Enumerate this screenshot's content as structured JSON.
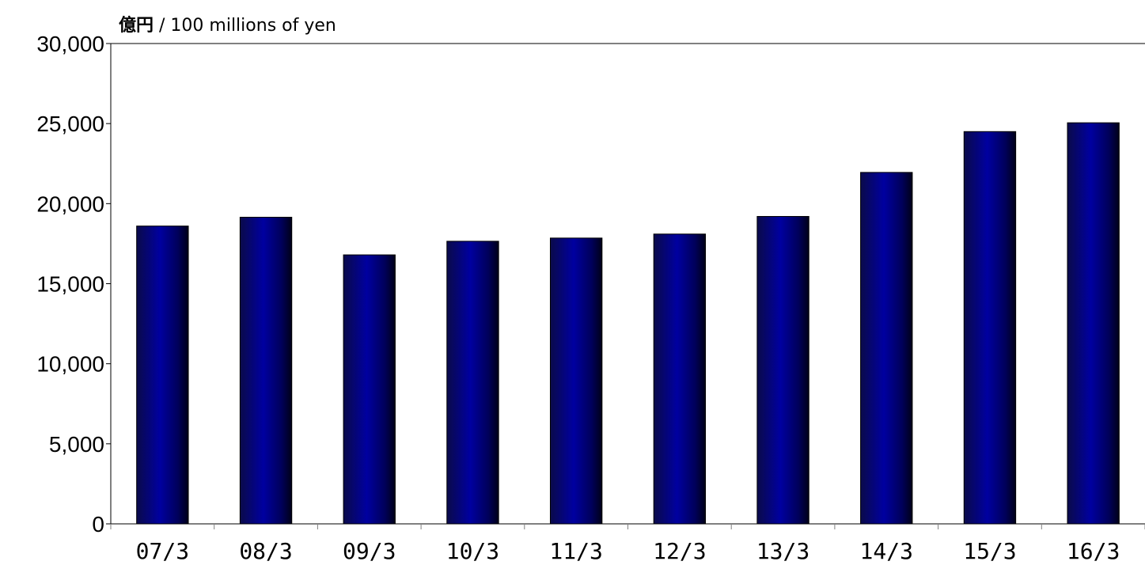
{
  "chart_data": {
    "type": "bar",
    "unit_label_jp": "億円",
    "unit_label_en": "/ 100 millions of yen",
    "categories": [
      "07/3",
      "08/3",
      "09/3",
      "10/3",
      "11/3",
      "12/3",
      "13/3",
      "14/3",
      "15/3",
      "16/3"
    ],
    "values": [
      18600,
      19150,
      16800,
      17650,
      17850,
      18100,
      19200,
      21950,
      24500,
      25050
    ],
    "ylim": [
      0,
      30000
    ],
    "yticks": [
      0,
      5000,
      10000,
      15000,
      20000,
      25000,
      30000
    ],
    "ytick_labels": [
      "0",
      "5,000",
      "10,000",
      "15,000",
      "20,000",
      "25,000",
      "30,000"
    ],
    "bar_color": "#000080",
    "grid": false,
    "legend": "none"
  }
}
